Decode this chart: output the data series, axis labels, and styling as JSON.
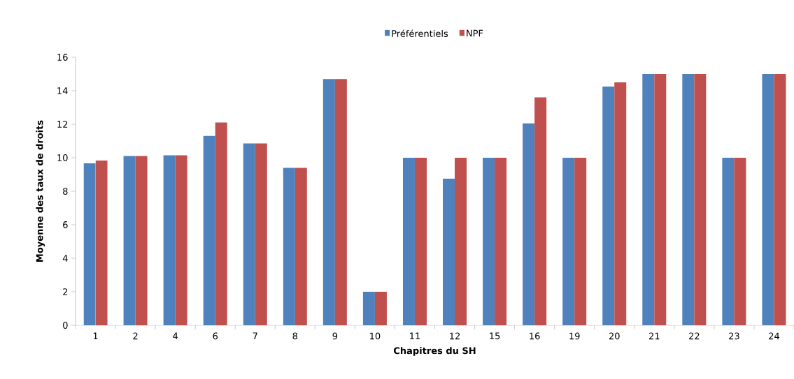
{
  "chart_data": {
    "type": "bar",
    "xlabel": "Chapitres du SH",
    "ylabel": "Moyenne des taux de droits",
    "categories": [
      "1",
      "2",
      "4",
      "6",
      "7",
      "8",
      "9",
      "10",
      "11",
      "12",
      "15",
      "16",
      "19",
      "20",
      "21",
      "22",
      "23",
      "24"
    ],
    "series": [
      {
        "name": "Préférentiels",
        "color": "#4f81bd",
        "values": [
          9.67,
          10.1,
          10.15,
          11.3,
          10.85,
          9.4,
          14.7,
          2,
          10,
          8.75,
          10,
          12.05,
          10,
          14.25,
          15,
          15,
          10,
          15
        ]
      },
      {
        "name": "NPF",
        "color": "#c0504d",
        "values": [
          9.83,
          10.1,
          10.15,
          12.1,
          10.85,
          9.4,
          14.7,
          2,
          10,
          10,
          10,
          13.6,
          10,
          14.5,
          15,
          15,
          10,
          15
        ]
      }
    ],
    "ylim": [
      0,
      16
    ],
    "yticks": [
      0,
      2,
      4,
      6,
      8,
      10,
      12,
      14,
      16
    ],
    "grid": false,
    "legend": "top"
  }
}
